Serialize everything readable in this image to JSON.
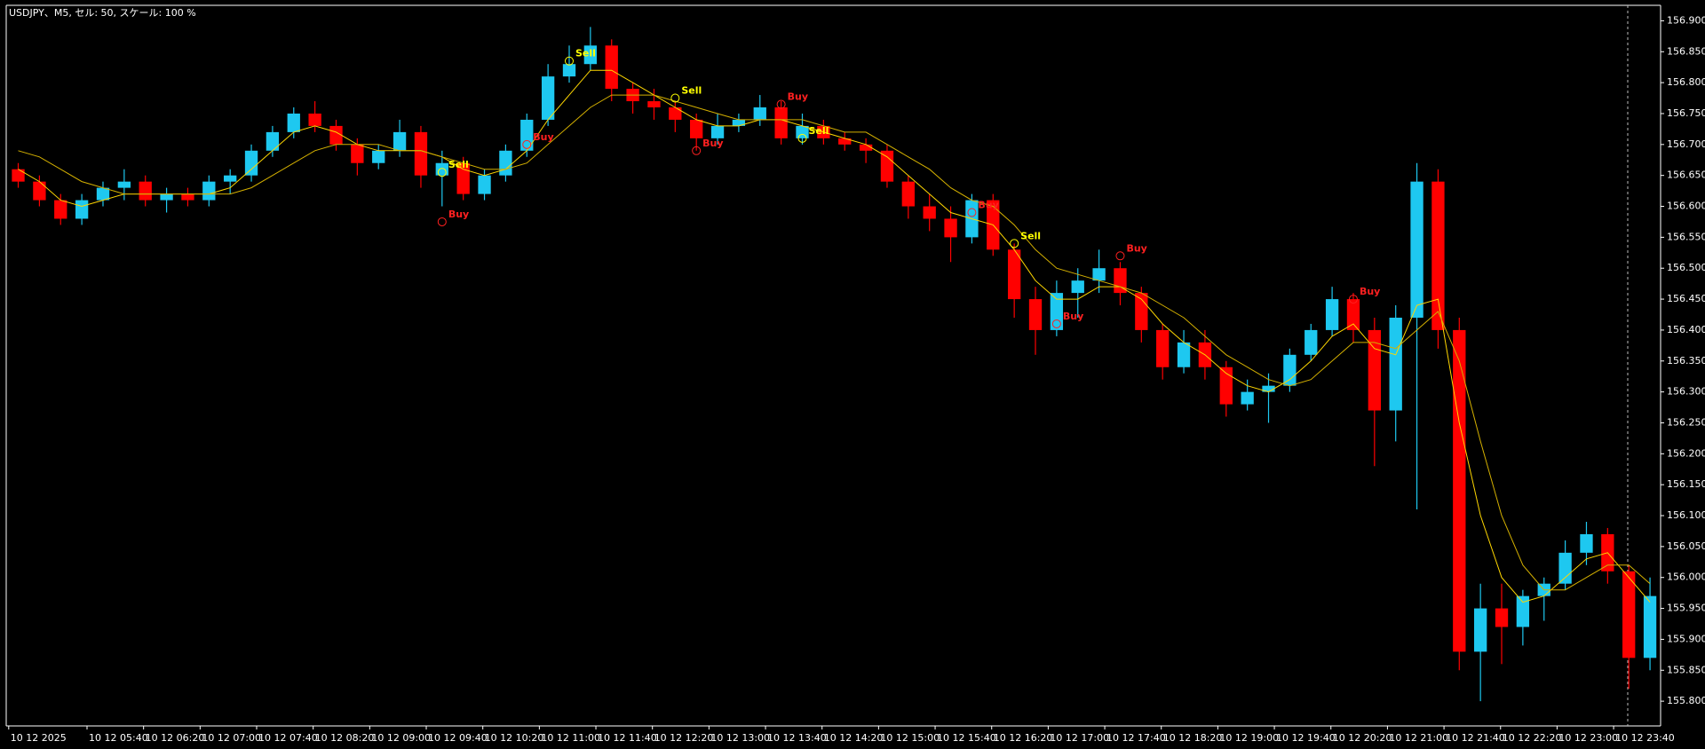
{
  "chart_data": {
    "type": "candlestick",
    "title": "USDJPY、M5, セル: 50, スケール: 100 %",
    "x_labels": [
      "10 12 2025",
      "10 12 05:40",
      "10 12 06:20",
      "10 12 07:00",
      "10 12 07:40",
      "10 12 08:20",
      "10 12 09:00",
      "10 12 09:40",
      "10 12 10:20",
      "10 12 11:00",
      "10 12 11:40",
      "10 12 12:20",
      "10 12 13:00",
      "10 12 13:40",
      "10 12 14:20",
      "10 12 15:00",
      "10 12 15:40",
      "10 12 16:20",
      "10 12 17:00",
      "10 12 17:40",
      "10 12 18:20",
      "10 12 19:00",
      "10 12 19:40",
      "10 12 20:20",
      "10 12 21:00",
      "10 12 21:40",
      "10 12 22:20",
      "10 12 23:00",
      "10 12 23:40"
    ],
    "open": [
      156.66,
      156.64,
      156.61,
      156.58,
      156.61,
      156.63,
      156.64,
      156.61,
      156.62,
      156.61,
      156.64,
      156.65,
      156.69,
      156.72,
      156.75,
      156.73,
      156.7,
      156.67,
      156.69,
      156.72,
      156.65,
      156.67,
      156.62,
      156.65,
      156.69,
      156.74,
      156.81,
      156.83,
      156.86,
      156.79,
      156.77,
      156.76,
      156.74,
      156.71,
      156.73,
      156.74,
      156.76,
      156.71,
      156.73,
      156.71,
      156.7,
      156.69,
      156.64,
      156.6,
      156.58,
      156.55,
      156.61,
      156.53,
      156.45,
      156.4,
      156.46,
      156.48,
      156.5,
      156.46,
      156.4,
      156.34,
      156.38,
      156.34,
      156.28,
      156.3,
      156.31,
      156.36,
      156.4,
      156.45,
      156.4,
      156.27,
      156.42,
      156.64,
      156.4,
      155.88,
      155.95,
      155.92,
      155.97,
      155.99,
      156.04,
      156.07,
      156.01,
      155.87
    ],
    "high": [
      156.67,
      156.65,
      156.62,
      156.62,
      156.64,
      156.66,
      156.65,
      156.63,
      156.63,
      156.65,
      156.66,
      156.7,
      156.73,
      156.76,
      156.77,
      156.74,
      156.71,
      156.7,
      156.74,
      156.73,
      156.69,
      156.68,
      156.66,
      156.7,
      156.75,
      156.83,
      156.86,
      156.89,
      156.87,
      156.8,
      156.79,
      156.77,
      156.75,
      156.75,
      156.75,
      156.78,
      156.77,
      156.75,
      156.74,
      156.72,
      156.71,
      156.7,
      156.65,
      156.62,
      156.6,
      156.62,
      156.62,
      156.54,
      156.47,
      156.48,
      156.5,
      156.53,
      156.51,
      156.47,
      156.41,
      156.4,
      156.4,
      156.35,
      156.32,
      156.33,
      156.37,
      156.41,
      156.47,
      156.46,
      156.42,
      156.44,
      156.67,
      156.66,
      156.42,
      155.99,
      155.99,
      155.98,
      156.0,
      156.06,
      156.09,
      156.08,
      156.02,
      156.0
    ],
    "low": [
      156.63,
      156.6,
      156.57,
      156.57,
      156.6,
      156.61,
      156.6,
      156.59,
      156.6,
      156.6,
      156.62,
      156.64,
      156.68,
      156.71,
      156.72,
      156.69,
      156.65,
      156.66,
      156.68,
      156.63,
      156.6,
      156.61,
      156.61,
      156.64,
      156.68,
      156.73,
      156.8,
      156.82,
      156.77,
      156.75,
      156.74,
      156.72,
      156.69,
      156.7,
      156.72,
      156.73,
      156.7,
      156.7,
      156.7,
      156.69,
      156.67,
      156.63,
      156.58,
      156.56,
      156.51,
      156.54,
      156.52,
      156.42,
      156.36,
      156.39,
      156.42,
      156.46,
      156.44,
      156.38,
      156.32,
      156.33,
      156.32,
      156.26,
      156.27,
      156.25,
      156.3,
      156.35,
      156.39,
      156.38,
      156.18,
      156.22,
      156.11,
      156.37,
      155.85,
      155.8,
      155.86,
      155.89,
      155.93,
      155.98,
      156.02,
      155.99,
      155.82,
      155.85
    ],
    "close": [
      156.64,
      156.61,
      156.58,
      156.61,
      156.63,
      156.64,
      156.61,
      156.62,
      156.61,
      156.64,
      156.65,
      156.69,
      156.72,
      156.75,
      156.73,
      156.7,
      156.67,
      156.69,
      156.72,
      156.65,
      156.67,
      156.62,
      156.65,
      156.69,
      156.74,
      156.81,
      156.83,
      156.86,
      156.79,
      156.77,
      156.76,
      156.74,
      156.71,
      156.73,
      156.74,
      156.76,
      156.71,
      156.73,
      156.71,
      156.7,
      156.69,
      156.64,
      156.6,
      156.58,
      156.55,
      156.61,
      156.53,
      156.45,
      156.4,
      156.46,
      156.48,
      156.5,
      156.46,
      156.4,
      156.34,
      156.38,
      156.34,
      156.28,
      156.3,
      156.31,
      156.36,
      156.4,
      156.45,
      156.4,
      156.27,
      156.42,
      156.64,
      156.4,
      155.88,
      155.95,
      155.92,
      155.97,
      155.99,
      156.04,
      156.07,
      156.01,
      155.87,
      155.97
    ],
    "up_color": "#1ec8f0",
    "down_color": "#ff0000",
    "series": [
      {
        "color": "#ffd700",
        "values": [
          156.66,
          156.64,
          156.61,
          156.6,
          156.61,
          156.62,
          156.62,
          156.62,
          156.62,
          156.62,
          156.63,
          156.66,
          156.69,
          156.72,
          156.73,
          156.72,
          156.7,
          156.69,
          156.69,
          156.69,
          156.68,
          156.66,
          156.65,
          156.66,
          156.69,
          156.74,
          156.78,
          156.82,
          156.82,
          156.8,
          156.78,
          156.76,
          156.74,
          156.73,
          156.73,
          156.74,
          156.74,
          156.73,
          156.72,
          156.71,
          156.7,
          156.68,
          156.65,
          156.62,
          156.59,
          156.58,
          156.57,
          156.53,
          156.48,
          156.45,
          156.45,
          156.47,
          156.47,
          156.45,
          156.41,
          156.38,
          156.36,
          156.33,
          156.31,
          156.3,
          156.32,
          156.35,
          156.39,
          156.41,
          156.37,
          156.36,
          156.44,
          156.45,
          156.25,
          156.1,
          156.0,
          155.96,
          155.97,
          156.0,
          156.03,
          156.04,
          156.0,
          155.96
        ]
      },
      {
        "color": "#d4b000",
        "values": [
          156.69,
          156.68,
          156.66,
          156.64,
          156.63,
          156.62,
          156.62,
          156.62,
          156.62,
          156.62,
          156.62,
          156.63,
          156.65,
          156.67,
          156.69,
          156.7,
          156.7,
          156.7,
          156.69,
          156.69,
          156.68,
          156.67,
          156.66,
          156.66,
          156.67,
          156.7,
          156.73,
          156.76,
          156.78,
          156.78,
          156.78,
          156.77,
          156.76,
          156.75,
          156.74,
          156.74,
          156.74,
          156.74,
          156.73,
          156.72,
          156.72,
          156.7,
          156.68,
          156.66,
          156.63,
          156.61,
          156.6,
          156.57,
          156.53,
          156.5,
          156.49,
          156.48,
          156.47,
          156.46,
          156.44,
          156.42,
          156.39,
          156.36,
          156.34,
          156.32,
          156.31,
          156.32,
          156.35,
          156.38,
          156.38,
          156.37,
          156.4,
          156.43,
          156.35,
          156.22,
          156.1,
          156.02,
          155.98,
          155.98,
          156.0,
          156.02,
          156.02,
          155.99
        ]
      }
    ],
    "signals": [
      {
        "label": "Sell",
        "index": 20,
        "price": 156.655,
        "color": "#ffff00"
      },
      {
        "label": "Buy",
        "index": 20,
        "price": 156.575,
        "color": "#ff2020"
      },
      {
        "label": "Buy",
        "index": 24,
        "price": 156.7,
        "color": "#ff2020"
      },
      {
        "label": "Sell",
        "index": 26,
        "price": 156.835,
        "color": "#ffff00"
      },
      {
        "label": "Sell",
        "index": 31,
        "price": 156.775,
        "color": "#ffff00"
      },
      {
        "label": "Buy",
        "index": 32,
        "price": 156.69,
        "color": "#ff2020"
      },
      {
        "label": "Buy",
        "index": 36,
        "price": 156.765,
        "color": "#ff2020"
      },
      {
        "label": "Sell",
        "index": 37,
        "price": 156.71,
        "color": "#ffff00"
      },
      {
        "label": "Buy",
        "index": 45,
        "price": 156.59,
        "color": "#ff2020"
      },
      {
        "label": "Sell",
        "index": 47,
        "price": 156.54,
        "color": "#ffff00"
      },
      {
        "label": "Buy",
        "index": 49,
        "price": 156.41,
        "color": "#ff2020"
      },
      {
        "label": "Buy",
        "index": 52,
        "price": 156.52,
        "color": "#ff2020"
      },
      {
        "label": "Buy",
        "index": 63,
        "price": 156.45,
        "color": "#ff2020"
      }
    ],
    "ylim": [
      155.76,
      156.925
    ],
    "yticks": [
      {
        "value": 156.9,
        "label": "156.900"
      },
      {
        "value": 156.85,
        "label": "156.850"
      },
      {
        "value": 156.8,
        "label": "156.800"
      },
      {
        "value": 156.75,
        "label": "156.750"
      },
      {
        "value": 156.7,
        "label": "156.700"
      },
      {
        "value": 156.65,
        "label": "156.650"
      },
      {
        "value": 156.6,
        "label": "156.600"
      },
      {
        "value": 156.55,
        "label": "156.550"
      },
      {
        "value": 156.5,
        "label": "156.500"
      },
      {
        "value": 156.45,
        "label": "156.450"
      },
      {
        "value": 156.4,
        "label": "156.400"
      },
      {
        "value": 156.35,
        "label": "156.350"
      },
      {
        "value": 156.3,
        "label": "156.300"
      },
      {
        "value": 156.25,
        "label": "156.250"
      },
      {
        "value": 156.2,
        "label": "156.200"
      },
      {
        "value": 156.15,
        "label": "156.150"
      },
      {
        "value": 156.1,
        "label": "156.100"
      },
      {
        "value": 156.05,
        "label": "156.050"
      },
      {
        "value": 156.0,
        "label": "156.000"
      },
      {
        "value": 155.95,
        "label": "155.950"
      },
      {
        "value": 155.9,
        "label": "155.900"
      },
      {
        "value": 155.85,
        "label": "155.850"
      },
      {
        "value": 155.8,
        "label": "155.800"
      }
    ]
  }
}
